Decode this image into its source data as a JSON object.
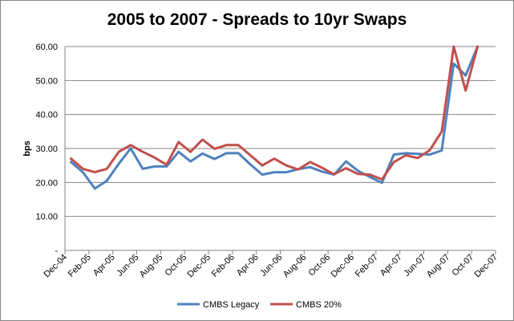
{
  "chart_data": {
    "type": "line",
    "title": "2005 to 2007 - Spreads to 10yr Swaps",
    "ylabel": "bps",
    "xlabel": "",
    "ylim": [
      0,
      60
    ],
    "y_ticks": [
      "-",
      "10.00",
      "20.00",
      "30.00",
      "40.00",
      "50.00",
      "60.00"
    ],
    "x_tick_labels": [
      "Dec-04",
      "Feb-05",
      "Apr-05",
      "Jun-05",
      "Aug-05",
      "Oct-05",
      "Dec-05",
      "Feb-06",
      "Apr-06",
      "Jun-06",
      "Aug-06",
      "Oct-06",
      "Dec-06",
      "Feb-07",
      "Apr-07",
      "Jun-07",
      "Aug-07",
      "Oct-07",
      "Dec-07"
    ],
    "x": [
      "Dec-04",
      "Jan-05",
      "Feb-05",
      "Mar-05",
      "Apr-05",
      "May-05",
      "Jun-05",
      "Jul-05",
      "Aug-05",
      "Sep-05",
      "Oct-05",
      "Nov-05",
      "Dec-05",
      "Jan-06",
      "Feb-06",
      "Mar-06",
      "Apr-06",
      "May-06",
      "Jun-06",
      "Jul-06",
      "Aug-06",
      "Sep-06",
      "Oct-06",
      "Nov-06",
      "Dec-06",
      "Jan-07",
      "Feb-07",
      "Mar-07",
      "Apr-07",
      "May-07",
      "Jun-07",
      "Jul-07",
      "Aug-07",
      "Sep-07",
      "Oct-07"
    ],
    "series": [
      {
        "name": "CMBS Legacy",
        "color": "#4f81bd",
        "values": [
          26,
          23,
          18.2,
          20.5,
          25.5,
          30,
          24,
          24.7,
          24.7,
          29,
          26.2,
          28.5,
          26.9,
          28.6,
          28.6,
          25.3,
          22.3,
          23,
          23,
          23.9,
          24.5,
          23.2,
          22.3,
          26.2,
          23.4,
          21.6,
          19.9,
          28.2,
          28.6,
          28.4,
          28.2,
          29.4,
          55,
          51.5,
          60
        ]
      },
      {
        "name": "CMBS 20%",
        "color": "#c0504d",
        "values": [
          27,
          24,
          23,
          24,
          29,
          31,
          29,
          27.3,
          25.2,
          31.9,
          29,
          32.6,
          29.9,
          31,
          31,
          28,
          25,
          27,
          25,
          23.8,
          26,
          24.3,
          22.4,
          24.2,
          22.5,
          22.3,
          20.9,
          26,
          28,
          27.2,
          29.5,
          35,
          60,
          47,
          60
        ]
      }
    ],
    "grid": "horizontal",
    "legend": "bottom"
  }
}
